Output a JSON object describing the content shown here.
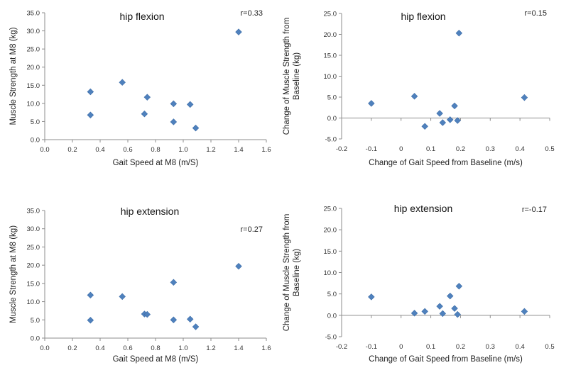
{
  "chart_data": [
    {
      "type": "scatter",
      "title": "hip flexion",
      "annotation": "r=0.33",
      "xlabel": "Gait Speed at M8 (m/S)",
      "ylabel": "Muscle Strength at M8 (kg)",
      "xlim": [
        0.0,
        1.6
      ],
      "ylim": [
        0.0,
        35.0
      ],
      "xticks": [
        "0.0",
        "0.2",
        "0.4",
        "0.6",
        "0.8",
        "1.0",
        "1.2",
        "1.4",
        "1.6"
      ],
      "yticks": [
        "0.0",
        "5.0",
        "10.0",
        "15.0",
        "20.0",
        "25.0",
        "30.0",
        "35.0"
      ],
      "grid": false,
      "marker_color": "#4f81bd",
      "points": [
        {
          "x": 0.33,
          "y": 13.2
        },
        {
          "x": 0.33,
          "y": 6.8
        },
        {
          "x": 0.56,
          "y": 15.8
        },
        {
          "x": 0.72,
          "y": 7.1
        },
        {
          "x": 0.74,
          "y": 11.7
        },
        {
          "x": 0.93,
          "y": 9.9
        },
        {
          "x": 0.93,
          "y": 4.9
        },
        {
          "x": 1.05,
          "y": 9.7
        },
        {
          "x": 1.09,
          "y": 3.2
        },
        {
          "x": 1.4,
          "y": 29.7
        }
      ]
    },
    {
      "type": "scatter",
      "title": "hip flexion",
      "annotation": "r=0.15",
      "xlabel": "Change of Gait Speed from Baseline (m/s)",
      "ylabel": [
        "Change of Muscle Strength from",
        "Baseline (kg)"
      ],
      "xlim": [
        -0.2,
        0.5
      ],
      "ylim": [
        -5.0,
        25.0
      ],
      "xticks": [
        "-0.2",
        "-0.1",
        "0",
        "0.1",
        "0.2",
        "0.3",
        "0.4",
        "0.5"
      ],
      "yticks": [
        "-5.0",
        "0.0",
        "5.0",
        "10.0",
        "15.0",
        "20.0",
        "25.0"
      ],
      "grid": false,
      "marker_color": "#4f81bd",
      "points": [
        {
          "x": -0.1,
          "y": 3.5
        },
        {
          "x": 0.045,
          "y": 5.2
        },
        {
          "x": 0.08,
          "y": -2.0
        },
        {
          "x": 0.13,
          "y": 1.1
        },
        {
          "x": 0.14,
          "y": -1.1
        },
        {
          "x": 0.165,
          "y": -0.4
        },
        {
          "x": 0.18,
          "y": 2.9
        },
        {
          "x": 0.19,
          "y": -0.6
        },
        {
          "x": 0.195,
          "y": 20.3
        },
        {
          "x": 0.415,
          "y": 4.9
        }
      ]
    },
    {
      "type": "scatter",
      "title": "hip extension",
      "annotation": "r=0.27",
      "xlabel": "Gait Speed at M8 (m/S)",
      "ylabel": "Muscle Strength at M8 (kg)",
      "xlim": [
        0.0,
        1.6
      ],
      "ylim": [
        0.0,
        35.0
      ],
      "xticks": [
        "0.0",
        "0.2",
        "0.4",
        "0.6",
        "0.8",
        "1.0",
        "1.2",
        "1.4",
        "1.6"
      ],
      "yticks": [
        "0.0",
        "5.0",
        "10.0",
        "15.0",
        "20.0",
        "25.0",
        "30.0",
        "35.0"
      ],
      "grid": false,
      "marker_color": "#4f81bd",
      "points": [
        {
          "x": 0.33,
          "y": 11.8
        },
        {
          "x": 0.33,
          "y": 4.9
        },
        {
          "x": 0.56,
          "y": 11.4
        },
        {
          "x": 0.72,
          "y": 6.6
        },
        {
          "x": 0.74,
          "y": 6.5
        },
        {
          "x": 0.93,
          "y": 15.3
        },
        {
          "x": 0.93,
          "y": 5.0
        },
        {
          "x": 1.05,
          "y": 5.2
        },
        {
          "x": 1.09,
          "y": 3.1
        },
        {
          "x": 1.4,
          "y": 19.7
        }
      ]
    },
    {
      "type": "scatter",
      "title": "hip extension",
      "annotation": "r=-0.17",
      "xlabel": "Change of Gait Speed from Baseline (m/s)",
      "ylabel": [
        "Change of Muscle Strength from",
        "Baseline (kg)"
      ],
      "xlim": [
        -0.2,
        0.5
      ],
      "ylim": [
        -5.0,
        25.0
      ],
      "xticks": [
        "-0.2",
        "-0.1",
        "0",
        "0.1",
        "0.2",
        "0.3",
        "0.4",
        "0.5"
      ],
      "yticks": [
        "-5.0",
        "0.0",
        "5.0",
        "10.0",
        "15.0",
        "20.0",
        "25.0"
      ],
      "grid": false,
      "marker_color": "#4f81bd",
      "points": [
        {
          "x": -0.1,
          "y": 4.3
        },
        {
          "x": 0.045,
          "y": 0.5
        },
        {
          "x": 0.08,
          "y": 0.9
        },
        {
          "x": 0.13,
          "y": 2.1
        },
        {
          "x": 0.14,
          "y": 0.4
        },
        {
          "x": 0.165,
          "y": 4.5
        },
        {
          "x": 0.18,
          "y": 1.6
        },
        {
          "x": 0.19,
          "y": 0.2
        },
        {
          "x": 0.195,
          "y": 6.8
        },
        {
          "x": 0.415,
          "y": 0.9
        }
      ]
    }
  ]
}
